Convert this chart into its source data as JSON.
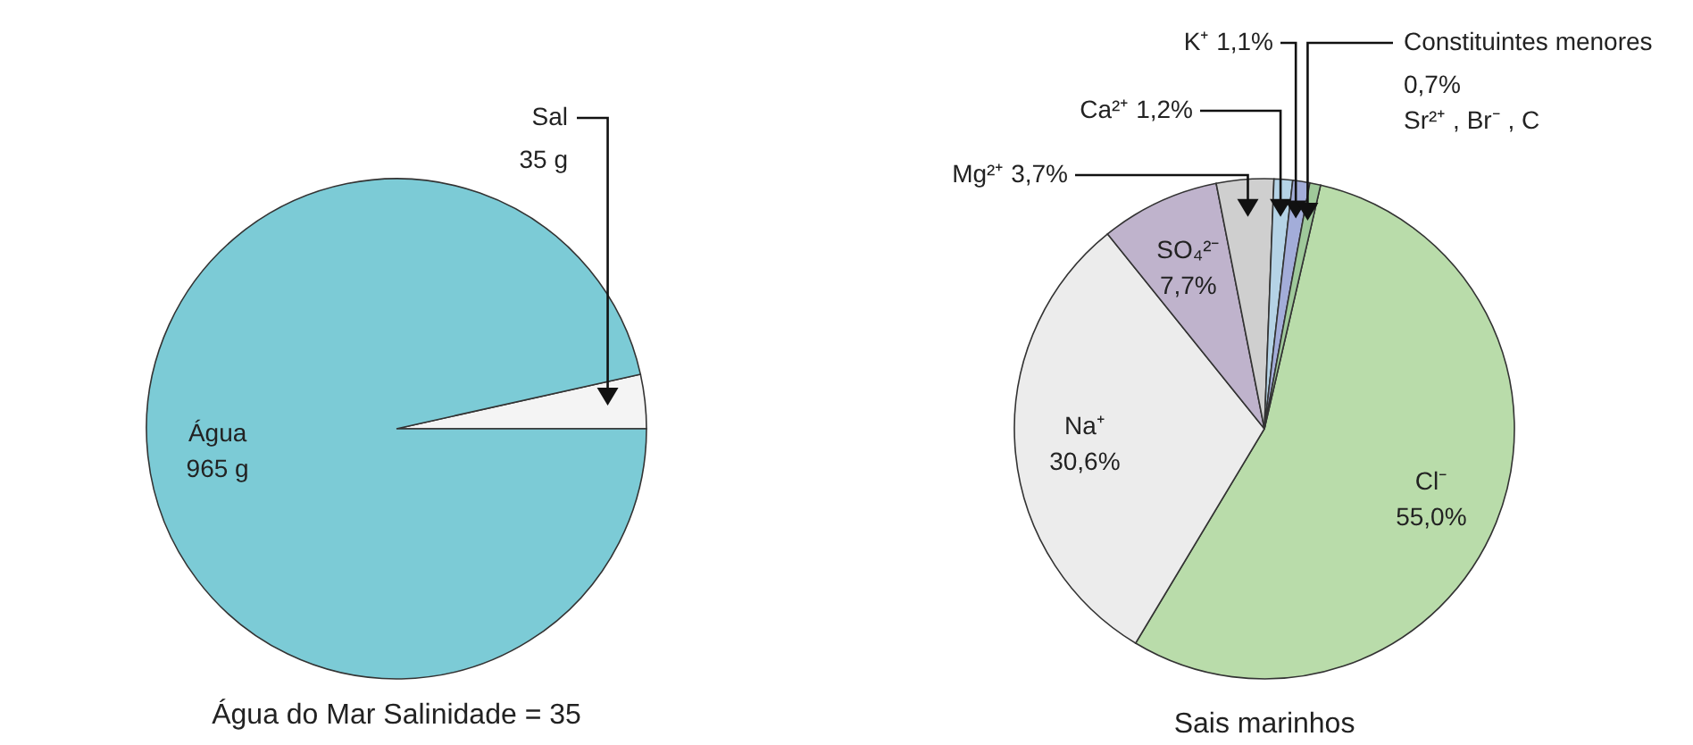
{
  "chart_data": [
    {
      "type": "pie",
      "title": "Água do Mar Salinidade = 35",
      "categories": [
        "Sal",
        "Água"
      ],
      "values": [
        35,
        965
      ],
      "value_labels": [
        "35 g",
        "965 g"
      ],
      "colors": [
        "#f4f4f4",
        "#7ccbd6"
      ]
    },
    {
      "type": "pie",
      "title": "Sais marinhos",
      "categories": [
        "Cl⁻",
        "Na⁺",
        "SO₄²⁻",
        "Mg²⁺",
        "Ca²⁺",
        "K⁺",
        "Constituintes menores"
      ],
      "values": [
        55.0,
        30.6,
        7.7,
        3.7,
        1.2,
        1.1,
        0.7
      ],
      "value_labels": [
        "55,0%",
        "30,6%",
        "7,7%",
        "3,7%",
        "1,2%",
        "1,1%",
        "0,7%"
      ],
      "colors": [
        "#b9dcaa",
        "#ececec",
        "#bfb3cc",
        "#cfcfcf",
        "#b5d3e6",
        "#a3add9",
        "#9fc99a"
      ],
      "annotations": [
        "Sr²⁺ , Br⁻ , C"
      ]
    }
  ]
}
